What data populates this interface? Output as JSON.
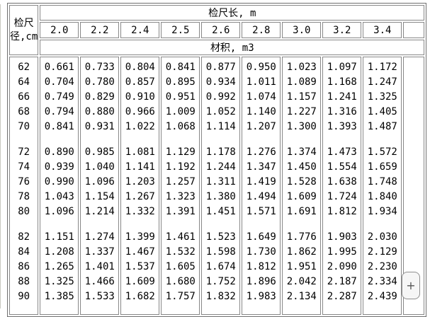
{
  "table": {
    "corner_header": "检尺径,cm",
    "corner_line1": "检尺",
    "corner_line2": "径,cm",
    "top_header": "检尺长, m",
    "unit_header": "材积, m3",
    "columns": [
      "2.0",
      "2.2",
      "2.4",
      "2.5",
      "2.6",
      "2.8",
      "3.0",
      "3.2",
      "3.4"
    ],
    "row_groups": [
      [
        {
          "d": "62",
          "v": [
            "0.661",
            "0.733",
            "0.804",
            "0.841",
            "0.877",
            "0.950",
            "1.023",
            "1.097",
            "1.172"
          ]
        },
        {
          "d": "64",
          "v": [
            "0.704",
            "0.780",
            "0.857",
            "0.895",
            "0.934",
            "1.011",
            "1.089",
            "1.168",
            "1.247"
          ]
        },
        {
          "d": "66",
          "v": [
            "0.749",
            "0.829",
            "0.910",
            "0.951",
            "0.992",
            "1.074",
            "1.157",
            "1.241",
            "1.325"
          ]
        },
        {
          "d": "68",
          "v": [
            "0.794",
            "0.880",
            "0.966",
            "1.009",
            "1.052",
            "1.140",
            "1.227",
            "1.316",
            "1.405"
          ]
        },
        {
          "d": "70",
          "v": [
            "0.841",
            "0.931",
            "1.022",
            "1.068",
            "1.114",
            "1.207",
            "1.300",
            "1.393",
            "1.487"
          ]
        }
      ],
      [
        {
          "d": "72",
          "v": [
            "0.890",
            "0.985",
            "1.081",
            "1.129",
            "1.178",
            "1.276",
            "1.374",
            "1.473",
            "1.572"
          ]
        },
        {
          "d": "74",
          "v": [
            "0.939",
            "1.040",
            "1.141",
            "1.192",
            "1.244",
            "1.347",
            "1.450",
            "1.554",
            "1.659"
          ]
        },
        {
          "d": "76",
          "v": [
            "0.990",
            "1.096",
            "1.203",
            "1.257",
            "1.311",
            "1.419",
            "1.528",
            "1.638",
            "1.748"
          ]
        },
        {
          "d": "78",
          "v": [
            "1.043",
            "1.154",
            "1.267",
            "1.323",
            "1.380",
            "1.494",
            "1.609",
            "1.724",
            "1.840"
          ]
        },
        {
          "d": "80",
          "v": [
            "1.096",
            "1.214",
            "1.332",
            "1.391",
            "1.451",
            "1.571",
            "1.691",
            "1.812",
            "1.934"
          ]
        }
      ],
      [
        {
          "d": "82",
          "v": [
            "1.151",
            "1.274",
            "1.399",
            "1.461",
            "1.523",
            "1.649",
            "1.776",
            "1.903",
            "2.030"
          ]
        },
        {
          "d": "84",
          "v": [
            "1.208",
            "1.337",
            "1.467",
            "1.532",
            "1.598",
            "1.730",
            "1.862",
            "1.995",
            "2.129"
          ]
        },
        {
          "d": "86",
          "v": [
            "1.265",
            "1.401",
            "1.537",
            "1.605",
            "1.674",
            "1.812",
            "1.951",
            "2.090",
            "2.230"
          ]
        },
        {
          "d": "88",
          "v": [
            "1.325",
            "1.466",
            "1.609",
            "1.680",
            "1.752",
            "1.896",
            "2.042",
            "2.187",
            "2.334"
          ]
        },
        {
          "d": "90",
          "v": [
            "1.385",
            "1.533",
            "1.682",
            "1.757",
            "1.832",
            "1.983",
            "2.134",
            "2.287",
            "2.439"
          ]
        }
      ]
    ]
  },
  "zoom_button": {
    "label": "+"
  },
  "colors": {
    "outer_border": "#6f6f6f",
    "cell_border": "#878787",
    "background": "#ffffff"
  }
}
